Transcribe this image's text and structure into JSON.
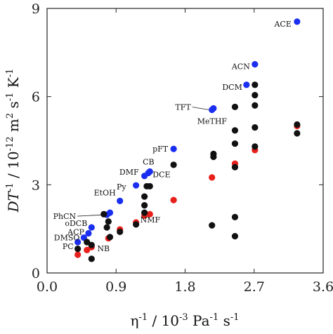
{
  "chart_data": {
    "type": "scatter",
    "xlabel": {
      "base": "η",
      "sup1": "-1",
      "mid": " / 10",
      "sup2": "-3",
      "unit": " Pa",
      "sup3": "-1",
      "tail": " s",
      "sup4": "-1"
    },
    "ylabel": {
      "main": "DT",
      "sup1": "-1",
      "mid": " / 10",
      "sup2": "-12",
      "unit": " m",
      "sup3": "2",
      "s": " s",
      "sup4": "-1",
      "k": " K",
      "sup5": "-1"
    },
    "xlim": [
      0.0,
      3.6
    ],
    "ylim": [
      0,
      9
    ],
    "x_ticks": [
      "0.0",
      "0.9",
      "1.8",
      "2.7",
      "3.6"
    ],
    "y_ticks": [
      "0",
      "3",
      "6",
      "9"
    ],
    "grid": false,
    "colors": {
      "black": "#111111",
      "red": "#e8201c",
      "blue": "#1a2ef0"
    },
    "series": [
      {
        "color": "blue",
        "points": [
          {
            "x": 0.4,
            "y": 1.05,
            "label": "PC"
          },
          {
            "x": 0.48,
            "y": 1.2,
            "label": "DMSO"
          },
          {
            "x": 0.54,
            "y": 1.35,
            "label": "ACP"
          },
          {
            "x": 0.58,
            "y": 1.55,
            "label": "oDCB"
          },
          {
            "x": 0.78,
            "y": 1.98,
            "label": "PhCN"
          },
          {
            "x": 0.82,
            "y": 2.05,
            "label": ""
          },
          {
            "x": 0.95,
            "y": 2.45,
            "label": "EtOH"
          },
          {
            "x": 1.16,
            "y": 2.98,
            "label": "Py"
          },
          {
            "x": 1.27,
            "y": 3.3,
            "label": "DMF"
          },
          {
            "x": 1.32,
            "y": 3.4,
            "label": "CB"
          },
          {
            "x": 1.34,
            "y": 3.45,
            "label": "DCE"
          },
          {
            "x": 1.65,
            "y": 4.22,
            "label": "pFT"
          },
          {
            "x": 2.15,
            "y": 5.55,
            "label": "TFT"
          },
          {
            "x": 2.17,
            "y": 5.6,
            "label": "MeTHF"
          },
          {
            "x": 2.6,
            "y": 6.4,
            "label": "DCM"
          },
          {
            "x": 2.71,
            "y": 7.1,
            "label": "ACN"
          },
          {
            "x": 3.26,
            "y": 8.55,
            "label": "ACE"
          }
        ]
      },
      {
        "color": "red",
        "points": [
          {
            "x": 0.4,
            "y": 0.62,
            "label": ""
          },
          {
            "x": 0.52,
            "y": 0.78,
            "label": ""
          },
          {
            "x": 0.58,
            "y": 0.88,
            "label": "NB"
          },
          {
            "x": 0.8,
            "y": 1.18,
            "label": ""
          },
          {
            "x": 0.95,
            "y": 1.48,
            "label": ""
          },
          {
            "x": 1.16,
            "y": 1.72,
            "label": "NMF"
          },
          {
            "x": 1.27,
            "y": 1.95,
            "label": ""
          },
          {
            "x": 1.34,
            "y": 2.0,
            "label": ""
          },
          {
            "x": 1.65,
            "y": 2.48,
            "label": ""
          },
          {
            "x": 2.15,
            "y": 3.25,
            "label": ""
          },
          {
            "x": 2.45,
            "y": 3.72,
            "label": ""
          },
          {
            "x": 2.71,
            "y": 4.18,
            "label": ""
          },
          {
            "x": 3.26,
            "y": 5.0,
            "label": ""
          }
        ]
      },
      {
        "color": "black",
        "points": [
          {
            "x": 0.4,
            "y": 0.82,
            "label": ""
          },
          {
            "x": 0.58,
            "y": 0.48,
            "label": ""
          },
          {
            "x": 0.58,
            "y": 0.95,
            "label": ""
          },
          {
            "x": 0.52,
            "y": 1.05,
            "label": ""
          },
          {
            "x": 0.74,
            "y": 2.0,
            "label": ""
          },
          {
            "x": 0.78,
            "y": 1.55,
            "label": ""
          },
          {
            "x": 0.8,
            "y": 1.75,
            "label": ""
          },
          {
            "x": 0.82,
            "y": 1.22,
            "label": ""
          },
          {
            "x": 0.95,
            "y": 1.4,
            "label": ""
          },
          {
            "x": 1.16,
            "y": 1.65,
            "label": ""
          },
          {
            "x": 1.27,
            "y": 2.05,
            "label": ""
          },
          {
            "x": 1.27,
            "y": 2.3,
            "label": ""
          },
          {
            "x": 1.27,
            "y": 2.6,
            "label": ""
          },
          {
            "x": 1.3,
            "y": 2.95,
            "label": ""
          },
          {
            "x": 1.34,
            "y": 2.95,
            "label": ""
          },
          {
            "x": 1.65,
            "y": 3.68,
            "label": ""
          },
          {
            "x": 2.15,
            "y": 1.62,
            "label": ""
          },
          {
            "x": 2.17,
            "y": 3.95,
            "label": ""
          },
          {
            "x": 2.17,
            "y": 4.05,
            "label": ""
          },
          {
            "x": 2.45,
            "y": 1.25,
            "label": ""
          },
          {
            "x": 2.45,
            "y": 1.9,
            "label": ""
          },
          {
            "x": 2.45,
            "y": 3.6,
            "label": ""
          },
          {
            "x": 2.45,
            "y": 4.4,
            "label": ""
          },
          {
            "x": 2.45,
            "y": 4.85,
            "label": ""
          },
          {
            "x": 2.45,
            "y": 5.65,
            "label": ""
          },
          {
            "x": 2.71,
            "y": 4.3,
            "label": ""
          },
          {
            "x": 2.71,
            "y": 4.95,
            "label": ""
          },
          {
            "x": 2.71,
            "y": 5.7,
            "label": ""
          },
          {
            "x": 2.71,
            "y": 6.05,
            "label": ""
          },
          {
            "x": 2.71,
            "y": 6.4,
            "label": ""
          },
          {
            "x": 3.26,
            "y": 4.75,
            "label": ""
          },
          {
            "x": 3.26,
            "y": 5.05,
            "label": ""
          }
        ]
      }
    ]
  }
}
